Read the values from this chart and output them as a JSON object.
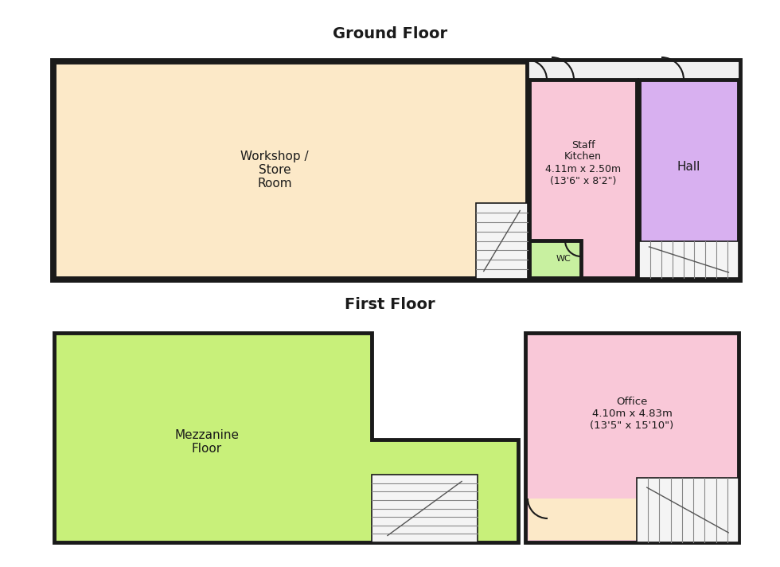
{
  "bg_color": "#ffffff",
  "wall_color": "#1a1a1a",
  "wall_lw": 3.5,
  "ground_floor_title": "Ground Floor",
  "first_floor_title": "First Floor",
  "colors": {
    "workshop": "#fce9c8",
    "staff_kitchen": "#f9c8d8",
    "hall": "#d8b0f0",
    "wc": "#c8f0a0",
    "mezzanine": "#c8f07a",
    "office": "#f9c8d8",
    "office_bottom": "#fce9c8",
    "stair_bg": "#f4f4f4"
  },
  "rooms": {
    "workshop_label": "Workshop /\nStore\nRoom",
    "staff_kitchen_label": "Staff\nKitchen\n4.11m x 2.50m\n(13'6\" x 8'2\")",
    "hall_label": "Hall",
    "wc_label": "WC",
    "mezzanine_label": "Mezzanine\nFloor",
    "office_label": "Office\n4.10m x 4.83m\n(13'5\" x 15'10\")"
  }
}
